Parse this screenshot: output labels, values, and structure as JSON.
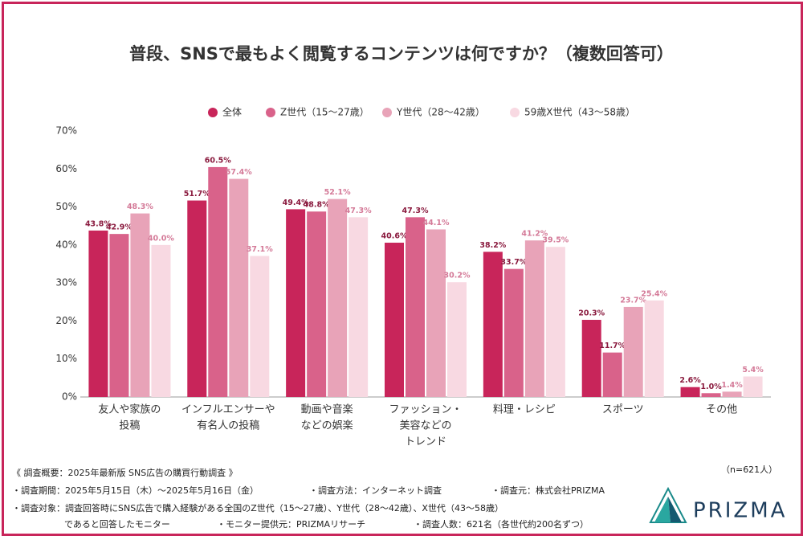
{
  "chart_data": {
    "type": "bar",
    "title": "普段、SNSで最もよく閲覧するコンテンツは何ですか？（複数回答可）",
    "categories": [
      [
        "友人や家族の",
        "投稿"
      ],
      [
        "インフルエンサーや",
        "有名人の投稿"
      ],
      [
        "動画や音楽",
        "などの娯楽"
      ],
      [
        "ファッション・",
        "美容などの",
        "トレンド"
      ],
      [
        "料理・レシピ"
      ],
      [
        "スポーツ"
      ],
      [
        "その他"
      ]
    ],
    "series": [
      {
        "name": "全体",
        "color": "#c8255a",
        "values": [
          43.8,
          51.7,
          49.4,
          40.6,
          38.2,
          20.3,
          2.6
        ],
        "value_labels": [
          "43.8%",
          "51.7%",
          "49.4%",
          "40.6%",
          "38.2%",
          "20.3%",
          "2.6%"
        ]
      },
      {
        "name": "Z世代（15～27歳）",
        "color": "#d9628a",
        "values": [
          42.9,
          60.5,
          48.8,
          47.3,
          33.7,
          11.7,
          1.0
        ],
        "value_labels": [
          "42.9%",
          "60.5%",
          "48.8%",
          "47.3%",
          "33.7%",
          "11.7%",
          "1.0%"
        ]
      },
      {
        "name": "Y世代（28～42歳）",
        "color": "#e8a3b8",
        "values": [
          48.3,
          57.4,
          52.1,
          44.1,
          41.2,
          23.7,
          1.4
        ],
        "value_labels": [
          "48.3%",
          "57.4%",
          "52.1%",
          "44.1%",
          "41.2%",
          "23.7%",
          "1.4%"
        ]
      },
      {
        "name": "59歳X世代（43～58歳）",
        "color": "#f8d9e2",
        "values": [
          40.0,
          37.1,
          47.3,
          30.2,
          39.5,
          25.4,
          5.4
        ],
        "value_labels": [
          "40.0%",
          "37.1%",
          "47.3%",
          "30.2%",
          "39.5%",
          "25.4%",
          "5.4%"
        ]
      }
    ],
    "ylim": [
      0,
      70
    ],
    "yticks": [
      {
        "value": 0,
        "label": "0%"
      },
      {
        "value": 10,
        "label": "10%"
      },
      {
        "value": 20,
        "label": "20%"
      },
      {
        "value": 30,
        "label": "30%"
      },
      {
        "value": 40,
        "label": "40%"
      },
      {
        "value": 50,
        "label": "50%"
      },
      {
        "value": 60,
        "label": "60%"
      },
      {
        "value": 70,
        "label": "70%"
      }
    ],
    "grid": false
  },
  "footer": {
    "heading": "《 調査概要：2025年最新版 SNS広告の購買行動調査 》",
    "sample": "（n=621人）",
    "period": "・調査期間：2025年5月15日（木）～2025年5月16日（金）",
    "method": "・調査方法：インターネット調査",
    "source": "・調査元：株式会社PRIZMA",
    "target": "・調査対象：調査回答時にSNS広告で購入経験がある全国のZ世代（15～27歳）、Y世代（28～42歳）、X世代（43～58歳）",
    "target_cont": "であると回答したモニター",
    "provider": "・モニター提供元：PRIZMAリサーチ",
    "count": "・調査人数：621名（各世代約200名ずつ）",
    "logo": "PRIZMA"
  }
}
